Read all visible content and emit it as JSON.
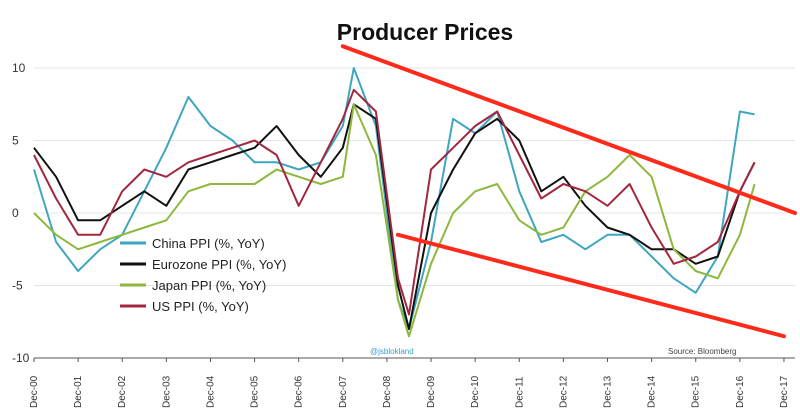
{
  "chart_data": {
    "type": "line",
    "title": "Producer Prices",
    "source": "Source: Bloomberg",
    "handle": "@jsblokland",
    "xlabel": "",
    "ylabel": "",
    "ylim": [
      -10,
      10
    ],
    "yticks": [
      10,
      5,
      0,
      -5,
      -10
    ],
    "x_tick_labels": [
      "Dec-00",
      "Dec-01",
      "Dec-02",
      "Dec-03",
      "Dec-04",
      "Dec-05",
      "Dec-06",
      "Dec-07",
      "Dec-08",
      "Dec-09",
      "Dec-10",
      "Dec-11",
      "Dec-12",
      "Dec-13",
      "Dec-14",
      "Dec-15",
      "Dec-16",
      "Dec-17"
    ],
    "grid": true,
    "legend_position": "bottom-left",
    "x": [
      "2000-12",
      "2001-06",
      "2001-12",
      "2002-06",
      "2002-12",
      "2003-06",
      "2003-12",
      "2004-06",
      "2004-12",
      "2005-06",
      "2005-12",
      "2006-06",
      "2006-12",
      "2007-06",
      "2007-12",
      "2008-03",
      "2008-09",
      "2009-03",
      "2009-06",
      "2009-12",
      "2010-06",
      "2010-12",
      "2011-06",
      "2011-12",
      "2012-06",
      "2012-12",
      "2013-06",
      "2013-12",
      "2014-06",
      "2014-12",
      "2015-06",
      "2015-12",
      "2016-06",
      "2016-12",
      "2017-04"
    ],
    "series": [
      {
        "name": "China PPI (%, YoY)",
        "color": "#3fa6c0",
        "values": [
          3.0,
          -2.0,
          -4.0,
          -2.5,
          -1.5,
          1.5,
          4.5,
          8.0,
          6.0,
          5.0,
          3.5,
          3.5,
          3.0,
          3.5,
          6.0,
          10.0,
          6.0,
          -6.0,
          -8.0,
          -2.0,
          6.5,
          5.5,
          7.0,
          1.5,
          -2.0,
          -1.5,
          -2.5,
          -1.5,
          -1.5,
          -3.0,
          -4.5,
          -5.5,
          -3.0,
          7.0,
          6.8
        ]
      },
      {
        "name": "Eurozone PPI (%, YoY)",
        "color": "#111111",
        "values": [
          4.5,
          2.5,
          -0.5,
          -0.5,
          0.5,
          1.5,
          0.5,
          3.0,
          3.5,
          4.0,
          4.5,
          6.0,
          4.0,
          2.5,
          4.5,
          7.5,
          6.5,
          -5.0,
          -8.0,
          0.0,
          3.0,
          5.5,
          6.5,
          5.0,
          1.5,
          2.5,
          0.5,
          -1.0,
          -1.5,
          -2.5,
          -2.5,
          -3.5,
          -3.0,
          1.5,
          3.5
        ]
      },
      {
        "name": "Japan PPI (%, YoY)",
        "color": "#8db83c",
        "values": [
          0.0,
          -1.5,
          -2.5,
          -2.0,
          -1.5,
          -1.0,
          -0.5,
          1.5,
          2.0,
          2.0,
          2.0,
          3.0,
          2.5,
          2.0,
          2.5,
          7.5,
          4.0,
          -6.0,
          -8.5,
          -3.5,
          0.0,
          1.5,
          2.0,
          -0.5,
          -1.5,
          -1.0,
          1.5,
          2.5,
          4.0,
          2.5,
          -2.5,
          -4.0,
          -4.5,
          -1.5,
          2.0
        ]
      },
      {
        "name": "US PPI (%, YoY)",
        "color": "#a1283e",
        "values": [
          4.0,
          1.0,
          -1.5,
          -1.5,
          1.5,
          3.0,
          2.5,
          3.5,
          4.0,
          4.5,
          5.0,
          4.0,
          0.5,
          3.5,
          6.5,
          8.5,
          7.0,
          -4.5,
          -7.0,
          3.0,
          4.5,
          6.0,
          7.0,
          4.0,
          1.0,
          2.0,
          1.5,
          0.5,
          2.0,
          -1.0,
          -3.5,
          -3.0,
          -2.0,
          1.5,
          3.5
        ]
      }
    ],
    "trend_lines": {
      "color": "#ff2a1a",
      "upper": {
        "from": {
          "x": "2007-12",
          "y": 11.5
        },
        "to": {
          "x": "2018-03",
          "y": 0.0
        }
      },
      "lower": {
        "from": {
          "x": "2009-03",
          "y": -1.5
        },
        "to": {
          "x": "2017-12",
          "y": -8.5
        }
      }
    }
  }
}
